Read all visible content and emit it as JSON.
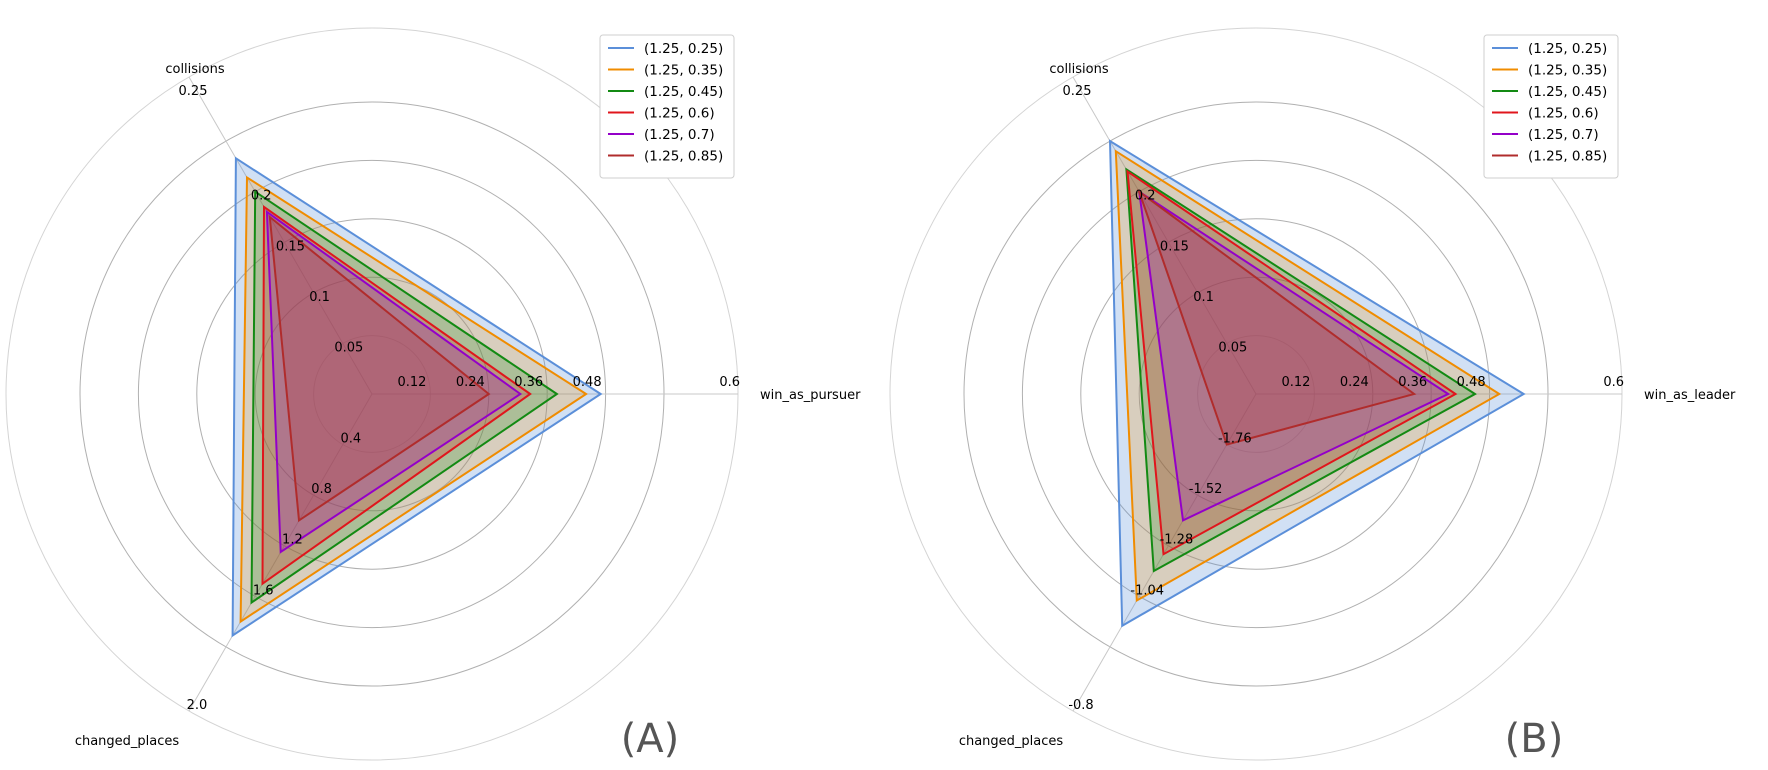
{
  "chart_data": [
    {
      "type": "radar",
      "panel_label": "(A)",
      "axes": [
        "win_as_pursuer",
        "collisions",
        "changed_places"
      ],
      "axis_ticks": {
        "win_as_pursuer": [
          "0.12",
          "0.24",
          "0.36",
          "0.48",
          "0.6"
        ],
        "collisions": [
          "0.05",
          "0.1",
          "0.15",
          "0.2",
          "0.25"
        ],
        "changed_places": [
          "0.4",
          "0.8",
          "1.2",
          "1.6",
          "2.0"
        ]
      },
      "axis_ranges": {
        "win_as_pursuer": [
          0,
          0.6
        ],
        "collisions": [
          0,
          0.25
        ],
        "changed_places": [
          0,
          2.0
        ]
      },
      "legend_placement": "top-right",
      "series": [
        {
          "name": "(1.25, 0.25)",
          "color": "#5b8fd9",
          "values": [
            0.47,
            0.233,
            1.91
          ]
        },
        {
          "name": "(1.25, 0.35)",
          "color": "#f08c00",
          "values": [
            0.44,
            0.214,
            1.8
          ]
        },
        {
          "name": "(1.25, 0.45)",
          "color": "#138a13",
          "values": [
            0.38,
            0.2,
            1.65
          ]
        },
        {
          "name": "(1.25, 0.6)",
          "color": "#e0161c",
          "values": [
            0.325,
            0.185,
            1.5
          ]
        },
        {
          "name": "(1.25, 0.7)",
          "color": "#9400c8",
          "values": [
            0.305,
            0.18,
            1.25
          ]
        },
        {
          "name": "(1.25, 0.85)",
          "color": "#b02c2c",
          "values": [
            0.24,
            0.175,
            1.0
          ]
        }
      ]
    },
    {
      "type": "radar",
      "panel_label": "(B)",
      "axes": [
        "win_as_leader",
        "collisions",
        "changed_places"
      ],
      "axis_ticks": {
        "win_as_leader": [
          "0.12",
          "0.24",
          "0.36",
          "0.48",
          "0.6"
        ],
        "collisions": [
          "0.05",
          "0.1",
          "0.15",
          "0.2",
          "0.25"
        ],
        "changed_places": [
          "-1.76",
          "-1.52",
          "-1.28",
          "-1.04",
          "-0.8"
        ]
      },
      "axis_ranges": {
        "win_as_leader": [
          0,
          0.6
        ],
        "collisions": [
          0,
          0.25
        ],
        "changed_places": [
          -2.0,
          -0.8
        ]
      },
      "legend_placement": "top-right",
      "series": [
        {
          "name": "(1.25, 0.25)",
          "color": "#5b8fd9",
          "values": [
            0.55,
            0.25,
            -0.9
          ]
        },
        {
          "name": "(1.25, 0.35)",
          "color": "#f08c00",
          "values": [
            0.5,
            0.24,
            -1.02
          ]
        },
        {
          "name": "(1.25, 0.45)",
          "color": "#138a13",
          "values": [
            0.45,
            0.222,
            -1.16
          ]
        },
        {
          "name": "(1.25, 0.6)",
          "color": "#e0161c",
          "values": [
            0.41,
            0.22,
            -1.24
          ]
        },
        {
          "name": "(1.25, 0.7)",
          "color": "#9400c8",
          "values": [
            0.395,
            0.2,
            -1.4
          ]
        },
        {
          "name": "(1.25, 0.85)",
          "color": "#b02c2c",
          "values": [
            0.325,
            0.2,
            -1.76
          ]
        }
      ]
    }
  ]
}
